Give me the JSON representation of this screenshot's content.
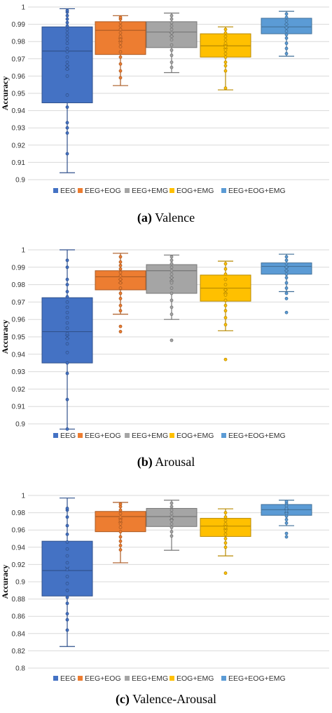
{
  "chart_data": [
    {
      "type": "box",
      "panel_label": "(a)",
      "caption": "Valence",
      "ylabel": "Accuracy",
      "ylim": [
        0.9,
        1.0
      ],
      "yticks": [
        "0.9",
        "0.91",
        "0.92",
        "0.93",
        "0.94",
        "0.95",
        "0.96",
        "0.97",
        "0.98",
        "0.99",
        "1"
      ],
      "ytick_values": [
        0.9,
        0.91,
        0.92,
        0.93,
        0.94,
        0.95,
        0.96,
        0.97,
        0.98,
        0.99,
        1.0
      ],
      "grid": true,
      "legend_position": "bottom",
      "series": [
        {
          "name": "EEG",
          "color": "#4472C4",
          "min": 0.904,
          "q1": 0.9445,
          "median": 0.9745,
          "q3": 0.9885,
          "max": 0.999,
          "mean": 0.965,
          "points": [
            0.915,
            0.927,
            0.93,
            0.933,
            0.942,
            0.949,
            0.96,
            0.964,
            0.966,
            0.968,
            0.971,
            0.974,
            0.976,
            0.979,
            0.981,
            0.983,
            0.985,
            0.987,
            0.989,
            0.991,
            0.993,
            0.995,
            0.997,
            0.998
          ]
        },
        {
          "name": "EEG+EOG",
          "color": "#ED7D31",
          "min": 0.9545,
          "q1": 0.9725,
          "median": 0.9865,
          "q3": 0.9915,
          "max": 0.995,
          "mean": 0.981,
          "points": [
            0.959,
            0.963,
            0.967,
            0.971,
            0.974,
            0.977,
            0.979,
            0.981,
            0.983,
            0.985,
            0.987,
            0.989,
            0.991,
            0.993,
            0.994
          ]
        },
        {
          "name": "EEG+EMG",
          "color": "#A5A5A5",
          "min": 0.962,
          "q1": 0.9765,
          "median": 0.9855,
          "q3": 0.9915,
          "max": 0.9965,
          "mean": 0.984,
          "points": [
            0.965,
            0.968,
            0.972,
            0.975,
            0.978,
            0.981,
            0.983,
            0.985,
            0.987,
            0.989,
            0.991,
            0.993,
            0.995
          ]
        },
        {
          "name": "EOG+EMG",
          "color": "#FFC000",
          "min": 0.952,
          "q1": 0.971,
          "median": 0.9775,
          "q3": 0.9845,
          "max": 0.9885,
          "mean": 0.977,
          "points": [
            0.953,
            0.963,
            0.966,
            0.968,
            0.971,
            0.973,
            0.975,
            0.977,
            0.979,
            0.981,
            0.983,
            0.985,
            0.987
          ]
        },
        {
          "name": "EEG+EOG+EMG",
          "color": "#5B9BD5",
          "min": 0.9715,
          "q1": 0.9845,
          "median": 0.9885,
          "q3": 0.9935,
          "max": 0.9975,
          "mean": 0.989,
          "points": [
            0.973,
            0.976,
            0.979,
            0.982,
            0.984,
            0.986,
            0.988,
            0.99,
            0.992,
            0.994,
            0.996
          ]
        }
      ]
    },
    {
      "type": "box",
      "panel_label": "(b)",
      "caption": "Arousal",
      "ylabel": "Accuracy",
      "ylim": [
        0.9,
        1.0
      ],
      "yticks": [
        "0.9",
        "0.91",
        "0.92",
        "0.93",
        "0.94",
        "0.95",
        "0.96",
        "0.97",
        "0.98",
        "0.99",
        "1"
      ],
      "ytick_values": [
        0.9,
        0.91,
        0.92,
        0.93,
        0.94,
        0.95,
        0.96,
        0.97,
        0.98,
        0.99,
        1.0
      ],
      "grid": true,
      "legend_position": "bottom",
      "series": [
        {
          "name": "EEG",
          "color": "#4472C4",
          "min": 0.897,
          "q1": 0.935,
          "median": 0.953,
          "q3": 0.9725,
          "max": 1.0,
          "mean": 0.95,
          "points": [
            0.897,
            0.914,
            0.929,
            0.935,
            0.941,
            0.946,
            0.949,
            0.952,
            0.955,
            0.958,
            0.961,
            0.964,
            0.967,
            0.97,
            0.973,
            0.976,
            0.98,
            0.983,
            0.99,
            0.994
          ]
        },
        {
          "name": "EEG+EOG",
          "color": "#ED7D31",
          "min": 0.963,
          "q1": 0.977,
          "median": 0.9845,
          "q3": 0.988,
          "max": 0.998,
          "mean": 0.982,
          "points": [
            0.953,
            0.956,
            0.965,
            0.968,
            0.972,
            0.975,
            0.978,
            0.981,
            0.983,
            0.985,
            0.987,
            0.989,
            0.991,
            0.993,
            0.996
          ]
        },
        {
          "name": "EEG+EMG",
          "color": "#A5A5A5",
          "min": 0.96,
          "q1": 0.975,
          "median": 0.988,
          "q3": 0.9915,
          "max": 0.997,
          "mean": 0.983,
          "points": [
            0.948,
            0.963,
            0.967,
            0.971,
            0.975,
            0.978,
            0.981,
            0.984,
            0.986,
            0.988,
            0.99,
            0.992,
            0.994,
            0.996
          ]
        },
        {
          "name": "EOG+EMG",
          "color": "#FFC000",
          "min": 0.9535,
          "q1": 0.9705,
          "median": 0.978,
          "q3": 0.9855,
          "max": 0.9935,
          "mean": 0.976,
          "points": [
            0.937,
            0.957,
            0.961,
            0.965,
            0.968,
            0.971,
            0.974,
            0.977,
            0.98,
            0.983,
            0.986,
            0.989,
            0.992
          ]
        },
        {
          "name": "EEG+EOG+EMG",
          "color": "#5B9BD5",
          "min": 0.976,
          "q1": 0.986,
          "median": 0.9905,
          "q3": 0.9925,
          "max": 0.9975,
          "mean": 0.989,
          "points": [
            0.964,
            0.972,
            0.975,
            0.978,
            0.981,
            0.984,
            0.986,
            0.988,
            0.99,
            0.992,
            0.994,
            0.996
          ]
        }
      ]
    },
    {
      "type": "box",
      "panel_label": "(c)",
      "caption": "Valence-Arousal",
      "ylabel": "Accuracy",
      "ylim": [
        0.8,
        1.0
      ],
      "yticks": [
        "0.8",
        "0.82",
        "0.84",
        "0.86",
        "0.88",
        "0.9",
        "0.92",
        "0.94",
        "0.96",
        "0.98",
        "1"
      ],
      "ytick_values": [
        0.8,
        0.82,
        0.84,
        0.86,
        0.88,
        0.9,
        0.92,
        0.94,
        0.96,
        0.98,
        1.0
      ],
      "grid": true,
      "legend_position": "bottom",
      "series": [
        {
          "name": "EEG",
          "color": "#4472C4",
          "min": 0.825,
          "q1": 0.8835,
          "median": 0.913,
          "q3": 0.947,
          "max": 0.997,
          "mean": 0.915,
          "points": [
            0.844,
            0.856,
            0.863,
            0.875,
            0.882,
            0.89,
            0.898,
            0.906,
            0.914,
            0.922,
            0.93,
            0.938,
            0.946,
            0.955,
            0.965,
            0.975,
            0.983,
            0.985
          ]
        },
        {
          "name": "EEG+EOG",
          "color": "#ED7D31",
          "min": 0.922,
          "q1": 0.958,
          "median": 0.9755,
          "q3": 0.9815,
          "max": 0.992,
          "mean": 0.971,
          "points": [
            0.937,
            0.942,
            0.947,
            0.952,
            0.958,
            0.963,
            0.967,
            0.971,
            0.975,
            0.979,
            0.983,
            0.987,
            0.99
          ]
        },
        {
          "name": "EEG+EMG",
          "color": "#A5A5A5",
          "min": 0.9365,
          "q1": 0.964,
          "median": 0.9755,
          "q3": 0.985,
          "max": 0.9945,
          "mean": 0.974,
          "points": [
            0.953,
            0.958,
            0.963,
            0.967,
            0.971,
            0.975,
            0.979,
            0.983,
            0.987,
            0.991
          ]
        },
        {
          "name": "EOG+EMG",
          "color": "#FFC000",
          "min": 0.93,
          "q1": 0.9525,
          "median": 0.9645,
          "q3": 0.9735,
          "max": 0.9845,
          "mean": 0.963,
          "points": [
            0.91,
            0.94,
            0.945,
            0.95,
            0.955,
            0.959,
            0.963,
            0.967,
            0.971,
            0.975,
            0.98
          ]
        },
        {
          "name": "EEG+EOG+EMG",
          "color": "#5B9BD5",
          "min": 0.965,
          "q1": 0.977,
          "median": 0.9835,
          "q3": 0.9895,
          "max": 0.9945,
          "mean": 0.982,
          "points": [
            0.952,
            0.956,
            0.968,
            0.972,
            0.976,
            0.979,
            0.982,
            0.985,
            0.988,
            0.991,
            0.993
          ]
        }
      ]
    }
  ]
}
